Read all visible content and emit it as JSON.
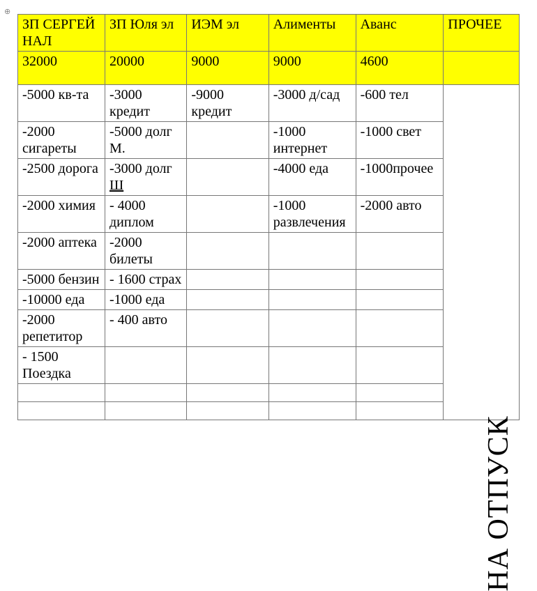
{
  "colors": {
    "header_bg": "#ffff00",
    "border": "#777777",
    "text": "#000000"
  },
  "headers": {
    "c0": "ЗП СЕРГЕЙ НАЛ",
    "c1": "ЗП Юля эл",
    "c2": "ИЭМ эл",
    "c3": "Алименты",
    "c4": "Аванс",
    "c5": "ПРОЧЕЕ"
  },
  "totals": {
    "c0": "32000",
    "c1": "20000",
    "c2": "9000",
    "c3": "9000",
    "c4": "4600",
    "c5": ""
  },
  "vacation_label": "НА ОТПУСК",
  "rows": [
    {
      "c0": "-5000 кв-та",
      "c1": "-3000 кредит",
      "c2": "-9000 кредит",
      "c3": "-3000 д/сад",
      "c4": "-600 тел"
    },
    {
      "c0": "-2000 сигареты",
      "c1": "-5000 долг М.",
      "c2": "",
      "c3": "-1000 интернет",
      "c4": "-1000 свет"
    },
    {
      "c0": "-2500 дорога",
      "c1_pre": "-3000 долг ",
      "c1_u": "Ш",
      "c2": "",
      "c3": "-4000 еда",
      "c4": "-1000прочее"
    },
    {
      "c0": "-2000 химия",
      "c1": "- 4000 диплом",
      "c2": "",
      "c3": "-1000 развлечения",
      "c4": "-2000 авто"
    },
    {
      "c0": "-2000 аптека",
      "c1": "-2000 билеты",
      "c2": "",
      "c3": "",
      "c4": ""
    },
    {
      "c0": "-5000 бензин",
      "c1": "- 1600 страх",
      "c2": "",
      "c3": "",
      "c4": ""
    },
    {
      "c0": "-10000 еда",
      "c1": "-1000 еда",
      "c2": "",
      "c3": "",
      "c4": ""
    },
    {
      "c0": "-2000 репетитор",
      "c1": "- 400 авто",
      "c2": "",
      "c3": "",
      "c4": ""
    },
    {
      "c0": "- 1500 Поездка",
      "c1": "",
      "c2": "",
      "c3": "",
      "c4": ""
    },
    {
      "c0": "",
      "c1": "",
      "c2": "",
      "c3": "",
      "c4": ""
    },
    {
      "c0": "",
      "c1": "",
      "c2": "",
      "c3": "",
      "c4": ""
    }
  ]
}
